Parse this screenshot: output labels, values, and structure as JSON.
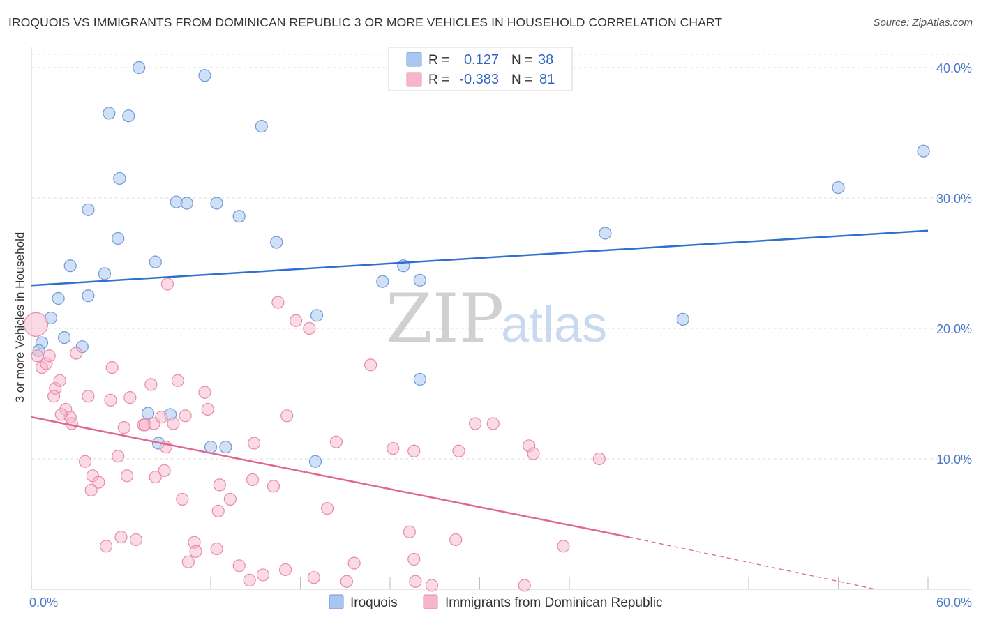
{
  "header": {
    "title": "IROQUOIS VS IMMIGRANTS FROM DOMINICAN REPUBLIC 3 OR MORE VEHICLES IN HOUSEHOLD CORRELATION CHART",
    "source": "Source: ZipAtlas.com"
  },
  "watermark": {
    "zip": "ZIP",
    "atlas": "atlas"
  },
  "legend": {
    "rows": [
      {
        "r_label": "R =",
        "r_value": "0.127",
        "n_label": "N =",
        "n_value": "38",
        "color": "#a9c6ef"
      },
      {
        "r_label": "R =",
        "r_value": "-0.383",
        "n_label": "N =",
        "n_value": "81",
        "color": "#f6b6c9"
      }
    ]
  },
  "bottom_legend": {
    "series1": "Iroquois",
    "series2": "Immigrants from Dominican Republic"
  },
  "chart_data": {
    "type": "scatter",
    "title": "IROQUOIS VS IMMIGRANTS FROM DOMINICAN REPUBLIC 3 OR MORE VEHICLES IN HOUSEHOLD CORRELATION CHART",
    "xlabel": "",
    "ylabel": "3 or more Vehicles in Household",
    "xlim": [
      0,
      60
    ],
    "ylim": [
      0,
      40
    ],
    "x_tick_labels": [
      "0.0%",
      "60.0%"
    ],
    "y_ticks": [
      10,
      20,
      30,
      40
    ],
    "y_tick_labels": [
      "10.0%",
      "20.0%",
      "30.0%",
      "40.0%"
    ],
    "grid": true,
    "series": [
      {
        "name": "Iroquois",
        "color": "#a9c6ef",
        "stroke": "#6f9ad8",
        "trend": {
          "x": [
            0,
            60
          ],
          "y": [
            23.3,
            27.5
          ],
          "color": "#2f6fcf"
        },
        "points": [
          [
            7.2,
            40.0
          ],
          [
            11.6,
            39.4
          ],
          [
            5.2,
            36.5
          ],
          [
            6.5,
            36.3
          ],
          [
            15.4,
            35.5
          ],
          [
            5.9,
            31.5
          ],
          [
            3.8,
            29.1
          ],
          [
            9.7,
            29.7
          ],
          [
            10.4,
            29.6
          ],
          [
            12.4,
            29.6
          ],
          [
            13.9,
            28.6
          ],
          [
            5.8,
            26.9
          ],
          [
            16.4,
            26.6
          ],
          [
            2.6,
            24.8
          ],
          [
            8.3,
            25.1
          ],
          [
            4.9,
            24.2
          ],
          [
            1.8,
            22.3
          ],
          [
            3.8,
            22.5
          ],
          [
            23.5,
            23.6
          ],
          [
            24.9,
            24.8
          ],
          [
            26.0,
            23.7
          ],
          [
            19.1,
            21.0
          ],
          [
            1.3,
            20.8
          ],
          [
            2.2,
            19.3
          ],
          [
            0.7,
            18.9
          ],
          [
            3.4,
            18.6
          ],
          [
            0.5,
            18.3
          ],
          [
            26.0,
            16.1
          ],
          [
            7.8,
            13.5
          ],
          [
            9.3,
            13.4
          ],
          [
            8.5,
            11.2
          ],
          [
            12.0,
            10.9
          ],
          [
            13.0,
            10.9
          ],
          [
            19.0,
            9.8
          ],
          [
            38.4,
            27.3
          ],
          [
            43.6,
            20.7
          ],
          [
            54.0,
            30.8
          ],
          [
            59.7,
            33.6
          ]
        ]
      },
      {
        "name": "Immigrants from Dominican Republic",
        "color": "#f6b6c9",
        "stroke": "#e98aa6",
        "trend": {
          "x": [
            0,
            40
          ],
          "y": [
            13.2,
            4.0
          ],
          "dashed_to": [
            56.5,
            0.0
          ],
          "color": "#e0678f"
        },
        "points": [
          [
            0.3,
            20.3
          ],
          [
            0.4,
            17.9
          ],
          [
            0.7,
            17.0
          ],
          [
            1.0,
            17.3
          ],
          [
            1.2,
            17.9
          ],
          [
            1.6,
            15.4
          ],
          [
            1.9,
            16.0
          ],
          [
            1.5,
            14.8
          ],
          [
            2.3,
            13.8
          ],
          [
            2.6,
            13.2
          ],
          [
            3.0,
            18.1
          ],
          [
            3.8,
            14.8
          ],
          [
            2.0,
            13.4
          ],
          [
            2.7,
            12.7
          ],
          [
            5.3,
            14.5
          ],
          [
            5.4,
            17.0
          ],
          [
            6.6,
            14.7
          ],
          [
            7.5,
            12.6
          ],
          [
            8.0,
            15.7
          ],
          [
            8.2,
            12.7
          ],
          [
            8.7,
            13.2
          ],
          [
            9.5,
            12.7
          ],
          [
            9.8,
            16.0
          ],
          [
            10.3,
            13.3
          ],
          [
            11.6,
            15.1
          ],
          [
            11.8,
            13.8
          ],
          [
            9.0,
            10.9
          ],
          [
            8.3,
            8.6
          ],
          [
            8.9,
            9.1
          ],
          [
            6.2,
            12.4
          ],
          [
            5.8,
            10.2
          ],
          [
            4.1,
            8.7
          ],
          [
            3.6,
            9.8
          ],
          [
            4.5,
            8.2
          ],
          [
            4.0,
            7.6
          ],
          [
            6.4,
            8.7
          ],
          [
            10.1,
            6.9
          ],
          [
            12.6,
            8.0
          ],
          [
            13.3,
            6.9
          ],
          [
            12.5,
            6.0
          ],
          [
            14.8,
            8.4
          ],
          [
            16.2,
            7.9
          ],
          [
            14.9,
            11.2
          ],
          [
            17.1,
            13.3
          ],
          [
            9.1,
            23.4
          ],
          [
            16.5,
            22.0
          ],
          [
            17.7,
            20.6
          ],
          [
            18.6,
            20.0
          ],
          [
            22.7,
            17.2
          ],
          [
            20.4,
            11.3
          ],
          [
            24.2,
            10.8
          ],
          [
            25.6,
            10.6
          ],
          [
            28.6,
            10.6
          ],
          [
            29.7,
            12.7
          ],
          [
            30.9,
            12.7
          ],
          [
            38.0,
            10.0
          ],
          [
            33.3,
            11.0
          ],
          [
            33.6,
            10.4
          ],
          [
            19.8,
            6.2
          ],
          [
            6.0,
            4.0
          ],
          [
            7.0,
            3.8
          ],
          [
            5.0,
            3.3
          ],
          [
            10.9,
            3.6
          ],
          [
            11.0,
            2.9
          ],
          [
            12.4,
            3.1
          ],
          [
            10.5,
            2.1
          ],
          [
            13.9,
            1.8
          ],
          [
            14.6,
            0.7
          ],
          [
            15.5,
            1.1
          ],
          [
            17.0,
            1.5
          ],
          [
            18.9,
            0.9
          ],
          [
            21.1,
            0.6
          ],
          [
            21.6,
            2.0
          ],
          [
            25.6,
            2.3
          ],
          [
            25.7,
            0.6
          ],
          [
            26.8,
            0.3
          ],
          [
            28.4,
            3.8
          ],
          [
            33.0,
            0.3
          ],
          [
            35.6,
            3.3
          ],
          [
            25.3,
            4.4
          ],
          [
            7.6,
            12.6
          ]
        ]
      }
    ]
  }
}
